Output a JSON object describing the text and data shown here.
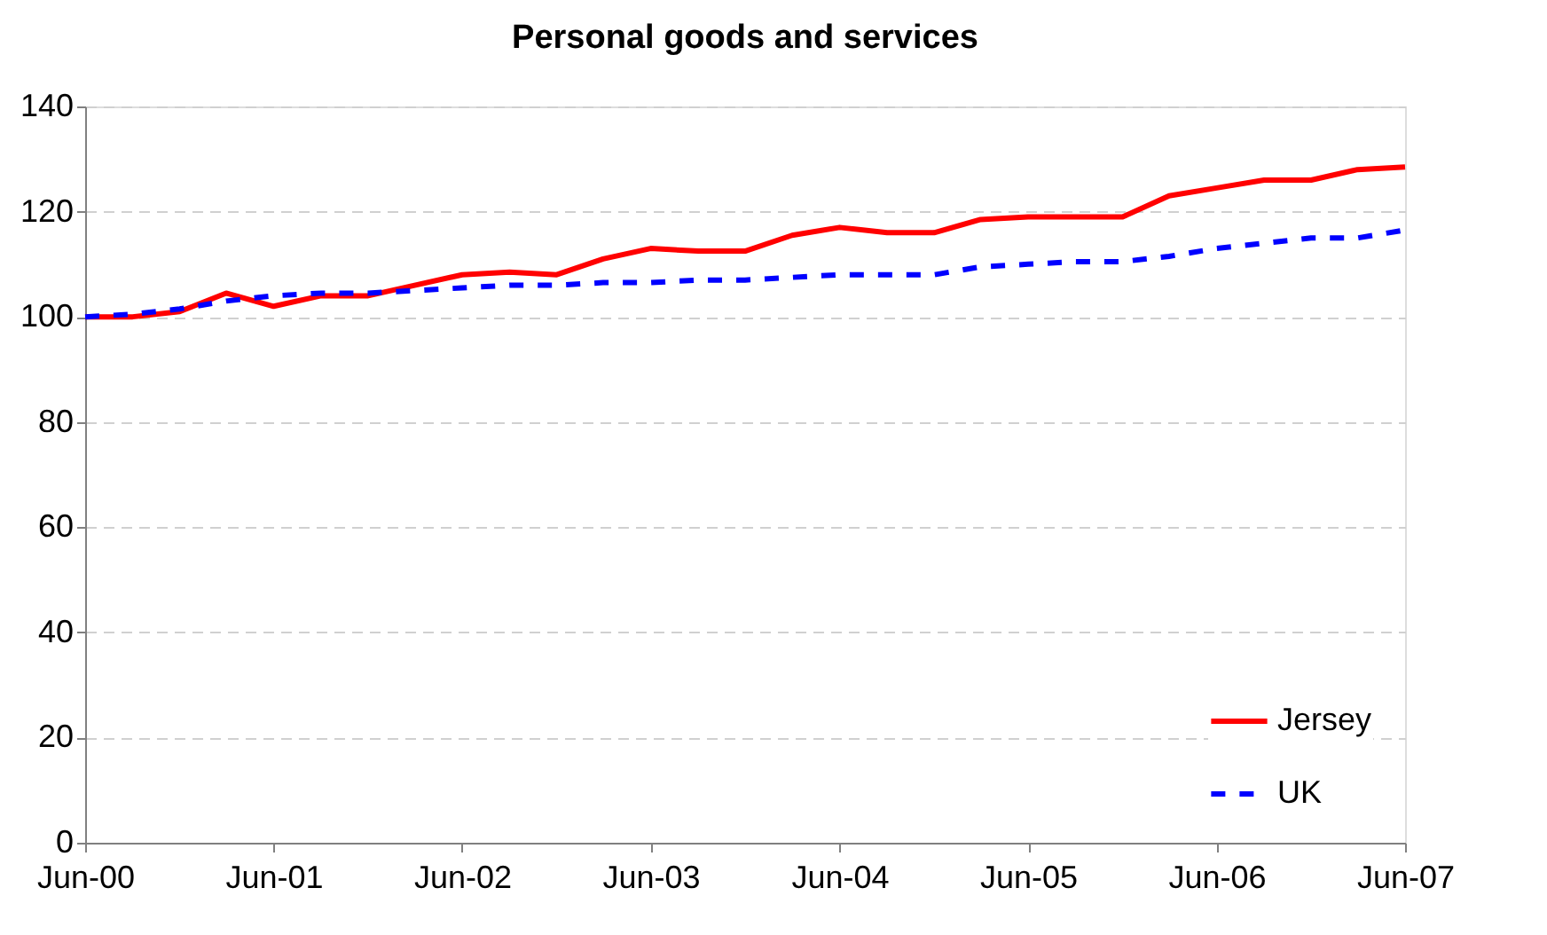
{
  "chart_data": {
    "type": "line",
    "title": "Personal goods and services",
    "x": [
      "2000-06",
      "2000-09",
      "2000-12",
      "2001-03",
      "2001-06",
      "2001-09",
      "2001-12",
      "2002-03",
      "2002-06",
      "2002-09",
      "2002-12",
      "2003-03",
      "2003-06",
      "2003-09",
      "2003-12",
      "2004-03",
      "2004-06",
      "2004-09",
      "2004-12",
      "2005-03",
      "2005-06",
      "2005-09",
      "2005-12",
      "2006-03",
      "2006-06",
      "2006-09",
      "2006-12",
      "2007-03",
      "2007-06"
    ],
    "series": [
      {
        "name": "Jersey",
        "color": "#ff0000",
        "line_style": "solid",
        "values": [
          100,
          100,
          101,
          104.5,
          102,
          104,
          104,
          106,
          108,
          108.5,
          108,
          111,
          113,
          112.5,
          112.5,
          115.5,
          117,
          116,
          116,
          118.5,
          119,
          119,
          119,
          123,
          124.5,
          126,
          126,
          128,
          128.5
        ]
      },
      {
        "name": "UK",
        "color": "#0000ff",
        "line_style": "dashed",
        "values": [
          100,
          100.5,
          101.5,
          103,
          104,
          104.5,
          104.5,
          105,
          105.5,
          106,
          106,
          106.5,
          106.5,
          107,
          107,
          107.5,
          108,
          108,
          108,
          109.5,
          110,
          110.5,
          110.5,
          111.5,
          113,
          114,
          115,
          115,
          116.5
        ]
      }
    ],
    "xlim": [
      "2000-06",
      "2007-06"
    ],
    "xticks": [
      {
        "value": "2000-06",
        "label": "Jun-00"
      },
      {
        "value": "2001-06",
        "label": "Jun-01"
      },
      {
        "value": "2002-06",
        "label": "Jun-02"
      },
      {
        "value": "2003-06",
        "label": "Jun-03"
      },
      {
        "value": "2004-06",
        "label": "Jun-04"
      },
      {
        "value": "2005-06",
        "label": "Jun-05"
      },
      {
        "value": "2006-06",
        "label": "Jun-06"
      },
      {
        "value": "2007-06",
        "label": "Jun-07"
      }
    ],
    "ylim": [
      0,
      140
    ],
    "yticks": [
      0,
      20,
      40,
      60,
      80,
      100,
      120,
      140
    ],
    "grid": "y",
    "legend": "bottom right",
    "marker": "none"
  }
}
